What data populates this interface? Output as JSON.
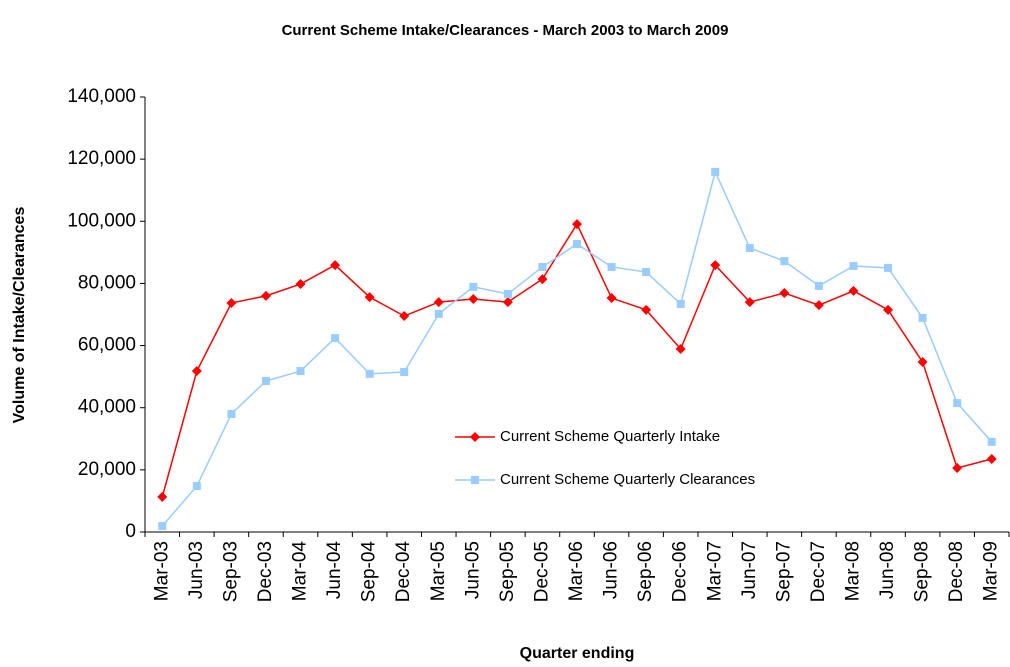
{
  "chart_data": {
    "type": "line",
    "title": "Current Scheme Intake/Clearances - March 2003 to March 2009",
    "x_label": "Quarter ending",
    "y_label": "Volume of Intake/Clearances",
    "categories": [
      "Mar-03",
      "Jun-03",
      "Sep-03",
      "Dec-03",
      "Mar-04",
      "Jun-04",
      "Sep-04",
      "Dec-04",
      "Mar-05",
      "Jun-05",
      "Sep-05",
      "Dec-05",
      "Mar-06",
      "Jun-06",
      "Sep-06",
      "Dec-06",
      "Mar-07",
      "Jun-07",
      "Sep-07",
      "Dec-07",
      "Mar-08",
      "Jun-08",
      "Sep-08",
      "Dec-08",
      "Mar-09"
    ],
    "series": [
      {
        "name": "Current Scheme Quarterly Intake",
        "color": "#ff0000",
        "marker": "diamond",
        "values": [
          11300,
          51800,
          73700,
          76000,
          79800,
          85900,
          75600,
          69500,
          74000,
          75000,
          74000,
          81400,
          99100,
          75300,
          71500,
          58900,
          85900,
          74000,
          76900,
          73000,
          77600,
          71500,
          54700,
          20600,
          23500
        ]
      },
      {
        "name": "Current Scheme Quarterly Clearances",
        "color": "#99ccff",
        "marker": "square",
        "values": [
          1900,
          14800,
          38000,
          48600,
          51800,
          62400,
          50900,
          51500,
          70200,
          78900,
          76600,
          85300,
          92700,
          85300,
          83700,
          73400,
          115900,
          91400,
          87200,
          79200,
          85600,
          85000,
          68900,
          41500,
          29000
        ]
      }
    ],
    "ylim": [
      0,
      140000
    ],
    "yticks": [
      0,
      {
        "value": 20000,
        "label": "20,000"
      },
      {
        "value": 40000,
        "label": "40,000"
      },
      {
        "value": 60000,
        "label": "60,000"
      },
      {
        "value": 80000,
        "label": "80,000"
      },
      {
        "value": 100000,
        "label": "100,000"
      },
      {
        "value": 120000,
        "label": "120,000"
      },
      {
        "value": 140000,
        "label": "140,000"
      }
    ],
    "grid": false,
    "legend": "lower center"
  }
}
